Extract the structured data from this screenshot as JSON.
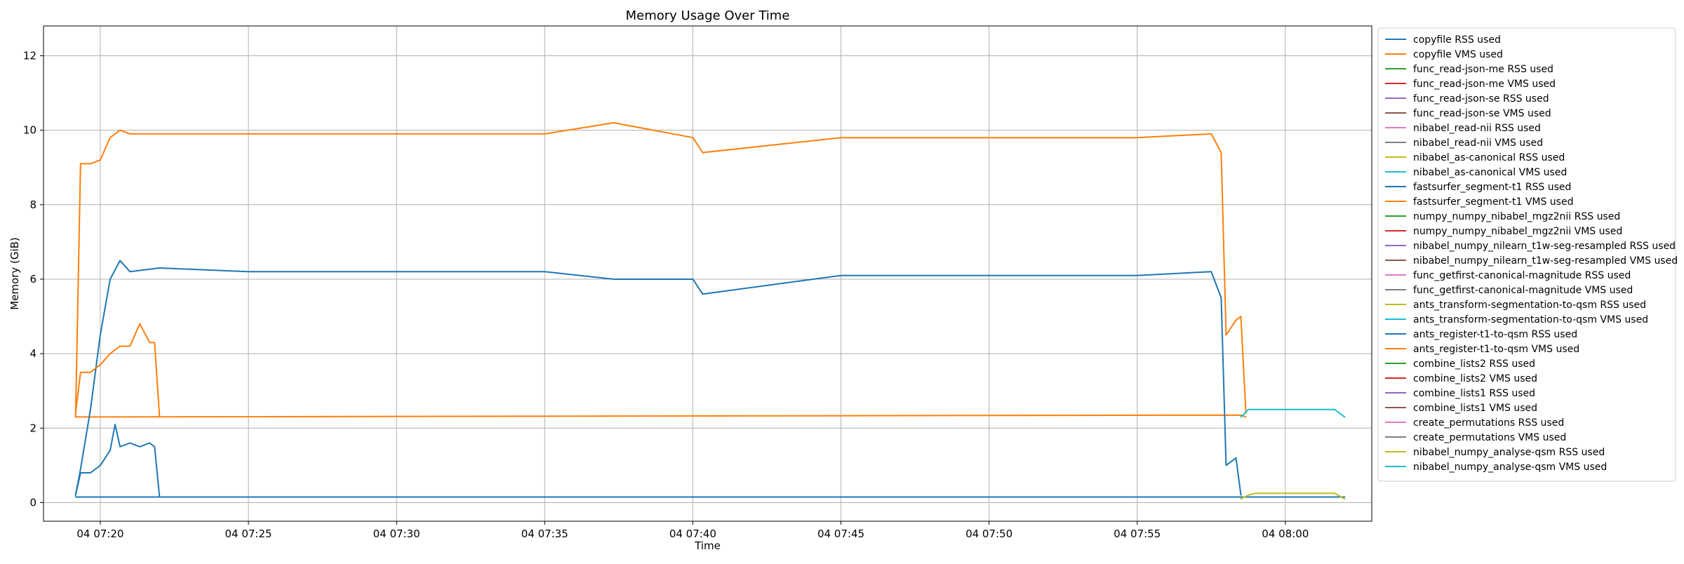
{
  "chart_data": {
    "type": "line",
    "title": "Memory Usage Over Time",
    "xlabel": "Time",
    "ylabel": "Memory (GiB)",
    "grid": true,
    "legend_position": "outside right, top",
    "xlim": [
      "2024-11-04 07:18:05",
      "2024-11-04 08:02:55"
    ],
    "ylim": [
      -0.5,
      12.8
    ],
    "x_ticks": [
      {
        "value": "07:20",
        "label": "04 07:20"
      },
      {
        "value": "07:25",
        "label": "04 07:25"
      },
      {
        "value": "07:30",
        "label": "04 07:30"
      },
      {
        "value": "07:35",
        "label": "04 07:35"
      },
      {
        "value": "07:40",
        "label": "04 07:40"
      },
      {
        "value": "07:45",
        "label": "04 07:45"
      },
      {
        "value": "07:50",
        "label": "04 07:50"
      },
      {
        "value": "07:55",
        "label": "04 07:55"
      },
      {
        "value": "08:00",
        "label": "04 08:00"
      }
    ],
    "y_ticks": [
      0,
      2,
      4,
      6,
      8,
      10,
      12
    ],
    "series": [
      {
        "name": "copyfile RSS used",
        "color": "#1f77b4",
        "x": [
          "07:19:10",
          "08:02:00"
        ],
        "y": [
          0.15,
          0.15
        ]
      },
      {
        "name": "copyfile VMS used",
        "color": "#ff7f0e",
        "x": [
          "07:19:10",
          "07:58:30",
          "07:58:40"
        ],
        "y": [
          2.3,
          2.35,
          2.3
        ]
      },
      {
        "name": "func_read-json-me RSS used",
        "color": "#2ca02c",
        "x": [],
        "y": []
      },
      {
        "name": "func_read-json-me VMS used",
        "color": "#d62728",
        "x": [],
        "y": []
      },
      {
        "name": "func_read-json-se RSS used",
        "color": "#9467bd",
        "x": [],
        "y": []
      },
      {
        "name": "func_read-json-se VMS used",
        "color": "#8c564b",
        "x": [],
        "y": []
      },
      {
        "name": "nibabel_read-nii RSS used",
        "color": "#e377c2",
        "x": [],
        "y": []
      },
      {
        "name": "nibabel_read-nii VMS used",
        "color": "#7f7f7f",
        "x": [],
        "y": []
      },
      {
        "name": "nibabel_as-canonical RSS used",
        "color": "#bcbd22",
        "x": [],
        "y": []
      },
      {
        "name": "nibabel_as-canonical VMS used",
        "color": "#17becf",
        "x": [],
        "y": []
      },
      {
        "name": "fastsurfer_segment-t1 RSS used",
        "color": "#1f77b4",
        "x": [
          "07:19:10",
          "07:19:20",
          "07:19:40",
          "07:20:00",
          "07:20:20",
          "07:20:40",
          "07:21:00",
          "07:22:00",
          "07:25:00",
          "07:30:00",
          "07:35:00",
          "07:37:20",
          "07:40:00",
          "07:40:20",
          "07:45:00",
          "07:50:00",
          "07:55:00",
          "07:57:30",
          "07:57:50",
          "07:58:00",
          "07:58:20",
          "07:58:30"
        ],
        "y": [
          0.2,
          0.9,
          2.5,
          4.5,
          6.0,
          6.5,
          6.2,
          6.3,
          6.2,
          6.2,
          6.2,
          6.0,
          6.0,
          5.6,
          6.1,
          6.1,
          6.1,
          6.2,
          5.5,
          1.0,
          1.2,
          0.2
        ]
      },
      {
        "name": "fastsurfer_segment-t1 VMS used",
        "color": "#ff7f0e",
        "x": [
          "07:19:10",
          "07:19:20",
          "07:19:40",
          "07:20:00",
          "07:20:20",
          "07:20:40",
          "07:21:00",
          "07:25:00",
          "07:30:00",
          "07:35:00",
          "07:37:20",
          "07:40:00",
          "07:40:20",
          "07:45:00",
          "07:50:00",
          "07:55:00",
          "07:57:30",
          "07:57:50",
          "07:58:00",
          "07:58:20",
          "07:58:30",
          "07:58:40"
        ],
        "y": [
          2.3,
          9.1,
          9.1,
          9.2,
          9.8,
          10.0,
          9.9,
          9.9,
          9.9,
          9.9,
          10.2,
          9.8,
          9.4,
          9.8,
          9.8,
          9.8,
          9.9,
          9.4,
          4.5,
          4.9,
          5.0,
          2.4
        ]
      },
      {
        "name": "numpy_numpy_nibabel_mgz2nii RSS used",
        "color": "#2ca02c",
        "x": [],
        "y": []
      },
      {
        "name": "numpy_numpy_nibabel_mgz2nii VMS used",
        "color": "#d62728",
        "x": [],
        "y": []
      },
      {
        "name": "nibabel_numpy_nilearn_t1w-seg-resampled RSS used",
        "color": "#9467bd",
        "x": [],
        "y": []
      },
      {
        "name": "nibabel_numpy_nilearn_t1w-seg-resampled VMS used",
        "color": "#8c564b",
        "x": [],
        "y": []
      },
      {
        "name": "func_getfirst-canonical-magnitude RSS used",
        "color": "#e377c2",
        "x": [],
        "y": []
      },
      {
        "name": "func_getfirst-canonical-magnitude VMS used",
        "color": "#7f7f7f",
        "x": [],
        "y": []
      },
      {
        "name": "ants_transform-segmentation-to-qsm RSS used",
        "color": "#bcbd22",
        "x": [],
        "y": []
      },
      {
        "name": "ants_transform-segmentation-to-qsm VMS used",
        "color": "#17becf",
        "x": [],
        "y": []
      },
      {
        "name": "ants_register-t1-to-qsm RSS used",
        "color": "#1f77b4",
        "x": [
          "07:19:10",
          "07:19:20",
          "07:19:40",
          "07:20:00",
          "07:20:20",
          "07:20:30",
          "07:20:40",
          "07:21:00",
          "07:21:20",
          "07:21:40",
          "07:21:50",
          "07:22:00"
        ],
        "y": [
          0.2,
          0.8,
          0.8,
          1.0,
          1.4,
          2.1,
          1.5,
          1.6,
          1.5,
          1.6,
          1.5,
          0.15
        ]
      },
      {
        "name": "ants_register-t1-to-qsm VMS used",
        "color": "#ff7f0e",
        "x": [
          "07:19:10",
          "07:19:20",
          "07:19:40",
          "07:20:00",
          "07:20:20",
          "07:20:40",
          "07:21:00",
          "07:21:20",
          "07:21:40",
          "07:21:50",
          "07:22:00"
        ],
        "y": [
          2.4,
          3.5,
          3.5,
          3.7,
          4.0,
          4.2,
          4.2,
          4.8,
          4.3,
          4.3,
          2.3
        ]
      },
      {
        "name": "combine_lists2 RSS used",
        "color": "#2ca02c",
        "x": [],
        "y": []
      },
      {
        "name": "combine_lists2 VMS used",
        "color": "#d62728",
        "x": [],
        "y": []
      },
      {
        "name": "combine_lists1 RSS used",
        "color": "#9467bd",
        "x": [],
        "y": []
      },
      {
        "name": "combine_lists1 VMS used",
        "color": "#8c564b",
        "x": [],
        "y": []
      },
      {
        "name": "create_permutations RSS used",
        "color": "#e377c2",
        "x": [],
        "y": []
      },
      {
        "name": "create_permutations VMS used",
        "color": "#7f7f7f",
        "x": [],
        "y": []
      },
      {
        "name": "nibabel_numpy_analyse-qsm RSS used",
        "color": "#bcbd22",
        "x": [
          "07:58:30",
          "07:58:45",
          "07:59:00",
          "08:00:00",
          "08:01:00",
          "08:01:40",
          "08:02:00"
        ],
        "y": [
          0.1,
          0.2,
          0.25,
          0.25,
          0.25,
          0.25,
          0.1
        ]
      },
      {
        "name": "nibabel_numpy_analyse-qsm VMS used",
        "color": "#17becf",
        "x": [
          "07:58:30",
          "07:58:45",
          "07:59:00",
          "08:00:00",
          "08:01:00",
          "08:01:40",
          "08:02:00"
        ],
        "y": [
          2.3,
          2.5,
          2.5,
          2.5,
          2.5,
          2.5,
          2.3
        ]
      }
    ]
  }
}
